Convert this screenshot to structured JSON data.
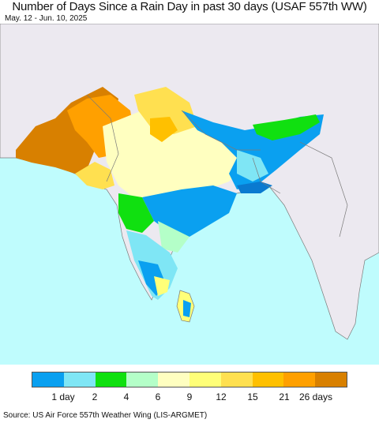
{
  "header": {
    "title": "Number of Days Since a Rain Day in past 30 days (USAF 557th WW)",
    "subtitle": "May. 12 - Jun. 10, 2025"
  },
  "map": {
    "land_color": "#ece9f0",
    "ocean_color": "#bffcfd",
    "border_color": "#7a7a7a"
  },
  "legend": {
    "colors": [
      "#0aa0f0",
      "#7fe6f5",
      "#10e010",
      "#b4ffc8",
      "#ffffc0",
      "#ffff78",
      "#ffe050",
      "#ffc000",
      "#ffa000",
      "#d88000"
    ],
    "labels": [
      "1 day",
      "2",
      "4",
      "6",
      "9",
      "12",
      "15",
      "21",
      "26 days"
    ]
  },
  "footer": {
    "source": "Source: US Air Force 557th Weather Wing (LIS-ARGMET)"
  }
}
